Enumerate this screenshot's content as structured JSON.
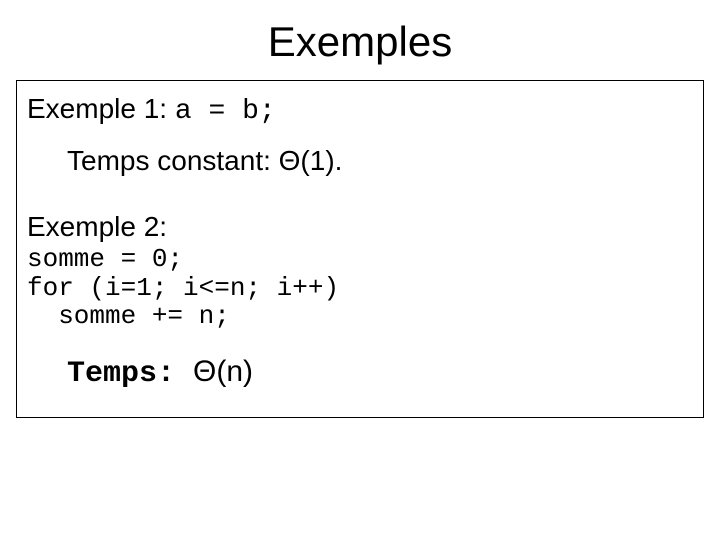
{
  "title": "Exemples",
  "example1": {
    "label": "Exemple 1: ",
    "code": "a = b;",
    "time_label": "Temps constant: ",
    "time_value": "Θ(1)."
  },
  "example2": {
    "label": "Exemple 2:",
    "code": "somme = 0;\nfor (i=1; i<=n; i++)\n  somme += n;",
    "time_label": "Temps: ",
    "time_value": "Θ(n)"
  },
  "styling": {
    "background_color": "#ffffff",
    "text_color": "#000000",
    "border_color": "#000000",
    "title_fontsize": 42,
    "body_fontsize": 28,
    "code_fontsize": 26,
    "code_font": "Courier New",
    "body_font": "Arial",
    "slide_width": 720,
    "slide_height": 540
  }
}
